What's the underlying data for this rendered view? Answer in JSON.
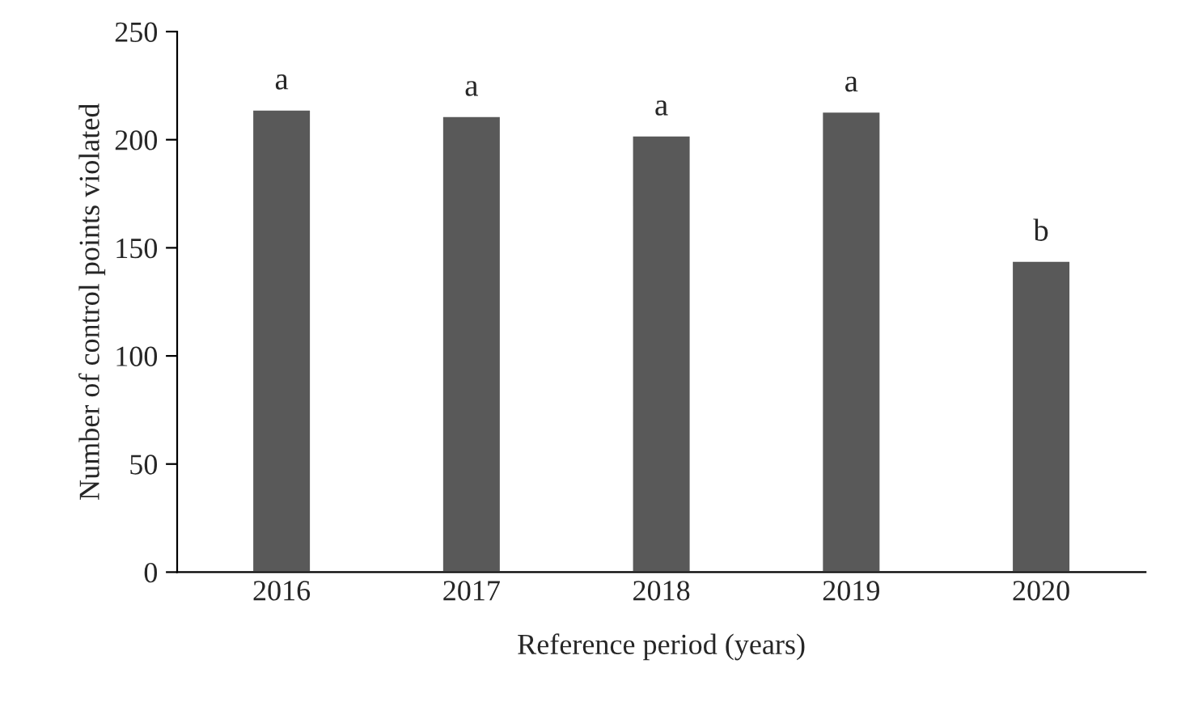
{
  "chart_data": {
    "type": "bar",
    "xlabel": "Reference period (years)",
    "ylabel": "Number of control points violated",
    "categories": [
      "2016",
      "2017",
      "2018",
      "2019",
      "2020"
    ],
    "values": [
      214,
      211,
      202,
      213,
      144
    ],
    "color": "#595959",
    "ylim": [
      0,
      250
    ],
    "yticks": [
      0,
      50,
      100,
      150,
      200,
      250
    ],
    "grid": false,
    "annotations": [
      {
        "text": "a",
        "x": "2016",
        "y": 214
      },
      {
        "text": "a",
        "x": "2017",
        "y": 211
      },
      {
        "text": "a",
        "x": "2018",
        "y": 202
      },
      {
        "text": "a",
        "x": "2019",
        "y": 213
      },
      {
        "text": "b",
        "x": "2020",
        "y": 144
      }
    ]
  }
}
